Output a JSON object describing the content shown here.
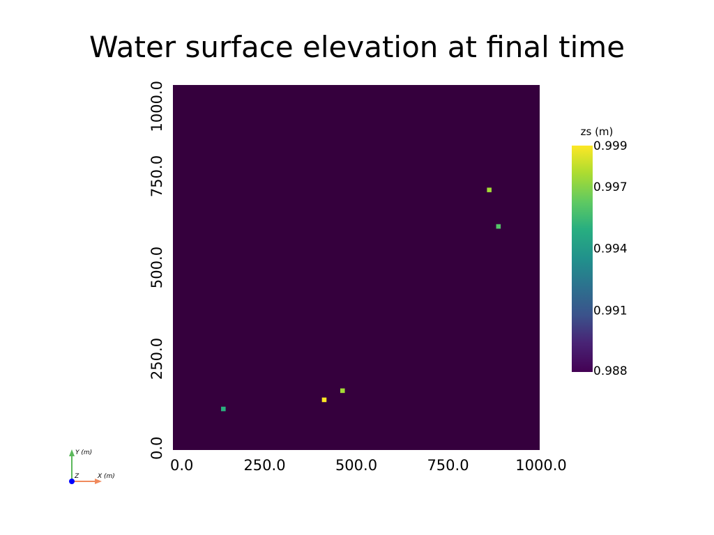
{
  "chart_data": {
    "type": "heatmap",
    "title": "Water surface elevation at final time",
    "xlim": [
      0,
      1000
    ],
    "ylim": [
      0,
      1000
    ],
    "x_ticks": [
      "0.0",
      "250.0",
      "500.0",
      "750.0",
      "1000.0"
    ],
    "y_ticks": [
      "0.0",
      "250.0",
      "500.0",
      "750.0",
      "1000.0"
    ],
    "x_tick_values": [
      0,
      250,
      500,
      750,
      1000
    ],
    "y_tick_values": [
      0,
      250,
      500,
      750,
      1000
    ],
    "background_value": 0.988,
    "cell_size": 25,
    "cells": [
      {
        "x": 137.5,
        "y": 112.5,
        "value": 0.995
      },
      {
        "x": 412.5,
        "y": 137.5,
        "value": 0.999
      },
      {
        "x": 462.5,
        "y": 162.5,
        "value": 0.9975
      },
      {
        "x": 862.5,
        "y": 712.5,
        "value": 0.9975
      },
      {
        "x": 887.5,
        "y": 612.5,
        "value": 0.996
      }
    ],
    "colorbar": {
      "title": "zs (m)",
      "min": 0.988,
      "max": 0.999,
      "tick_values": [
        0.999,
        0.997,
        0.994,
        0.991,
        0.988
      ],
      "tick_labels": [
        "0.999",
        "0.997",
        "0.994",
        "0.991",
        "0.988"
      ],
      "colormap": "viridis",
      "placement": "right"
    },
    "grid": false
  },
  "axes_widget": {
    "x_label": "X (m)",
    "y_label": "Y (m)",
    "z_label": "Z",
    "x_color": "#f08a5d",
    "y_color": "#5cb85c",
    "z_color": "#0000ff"
  }
}
